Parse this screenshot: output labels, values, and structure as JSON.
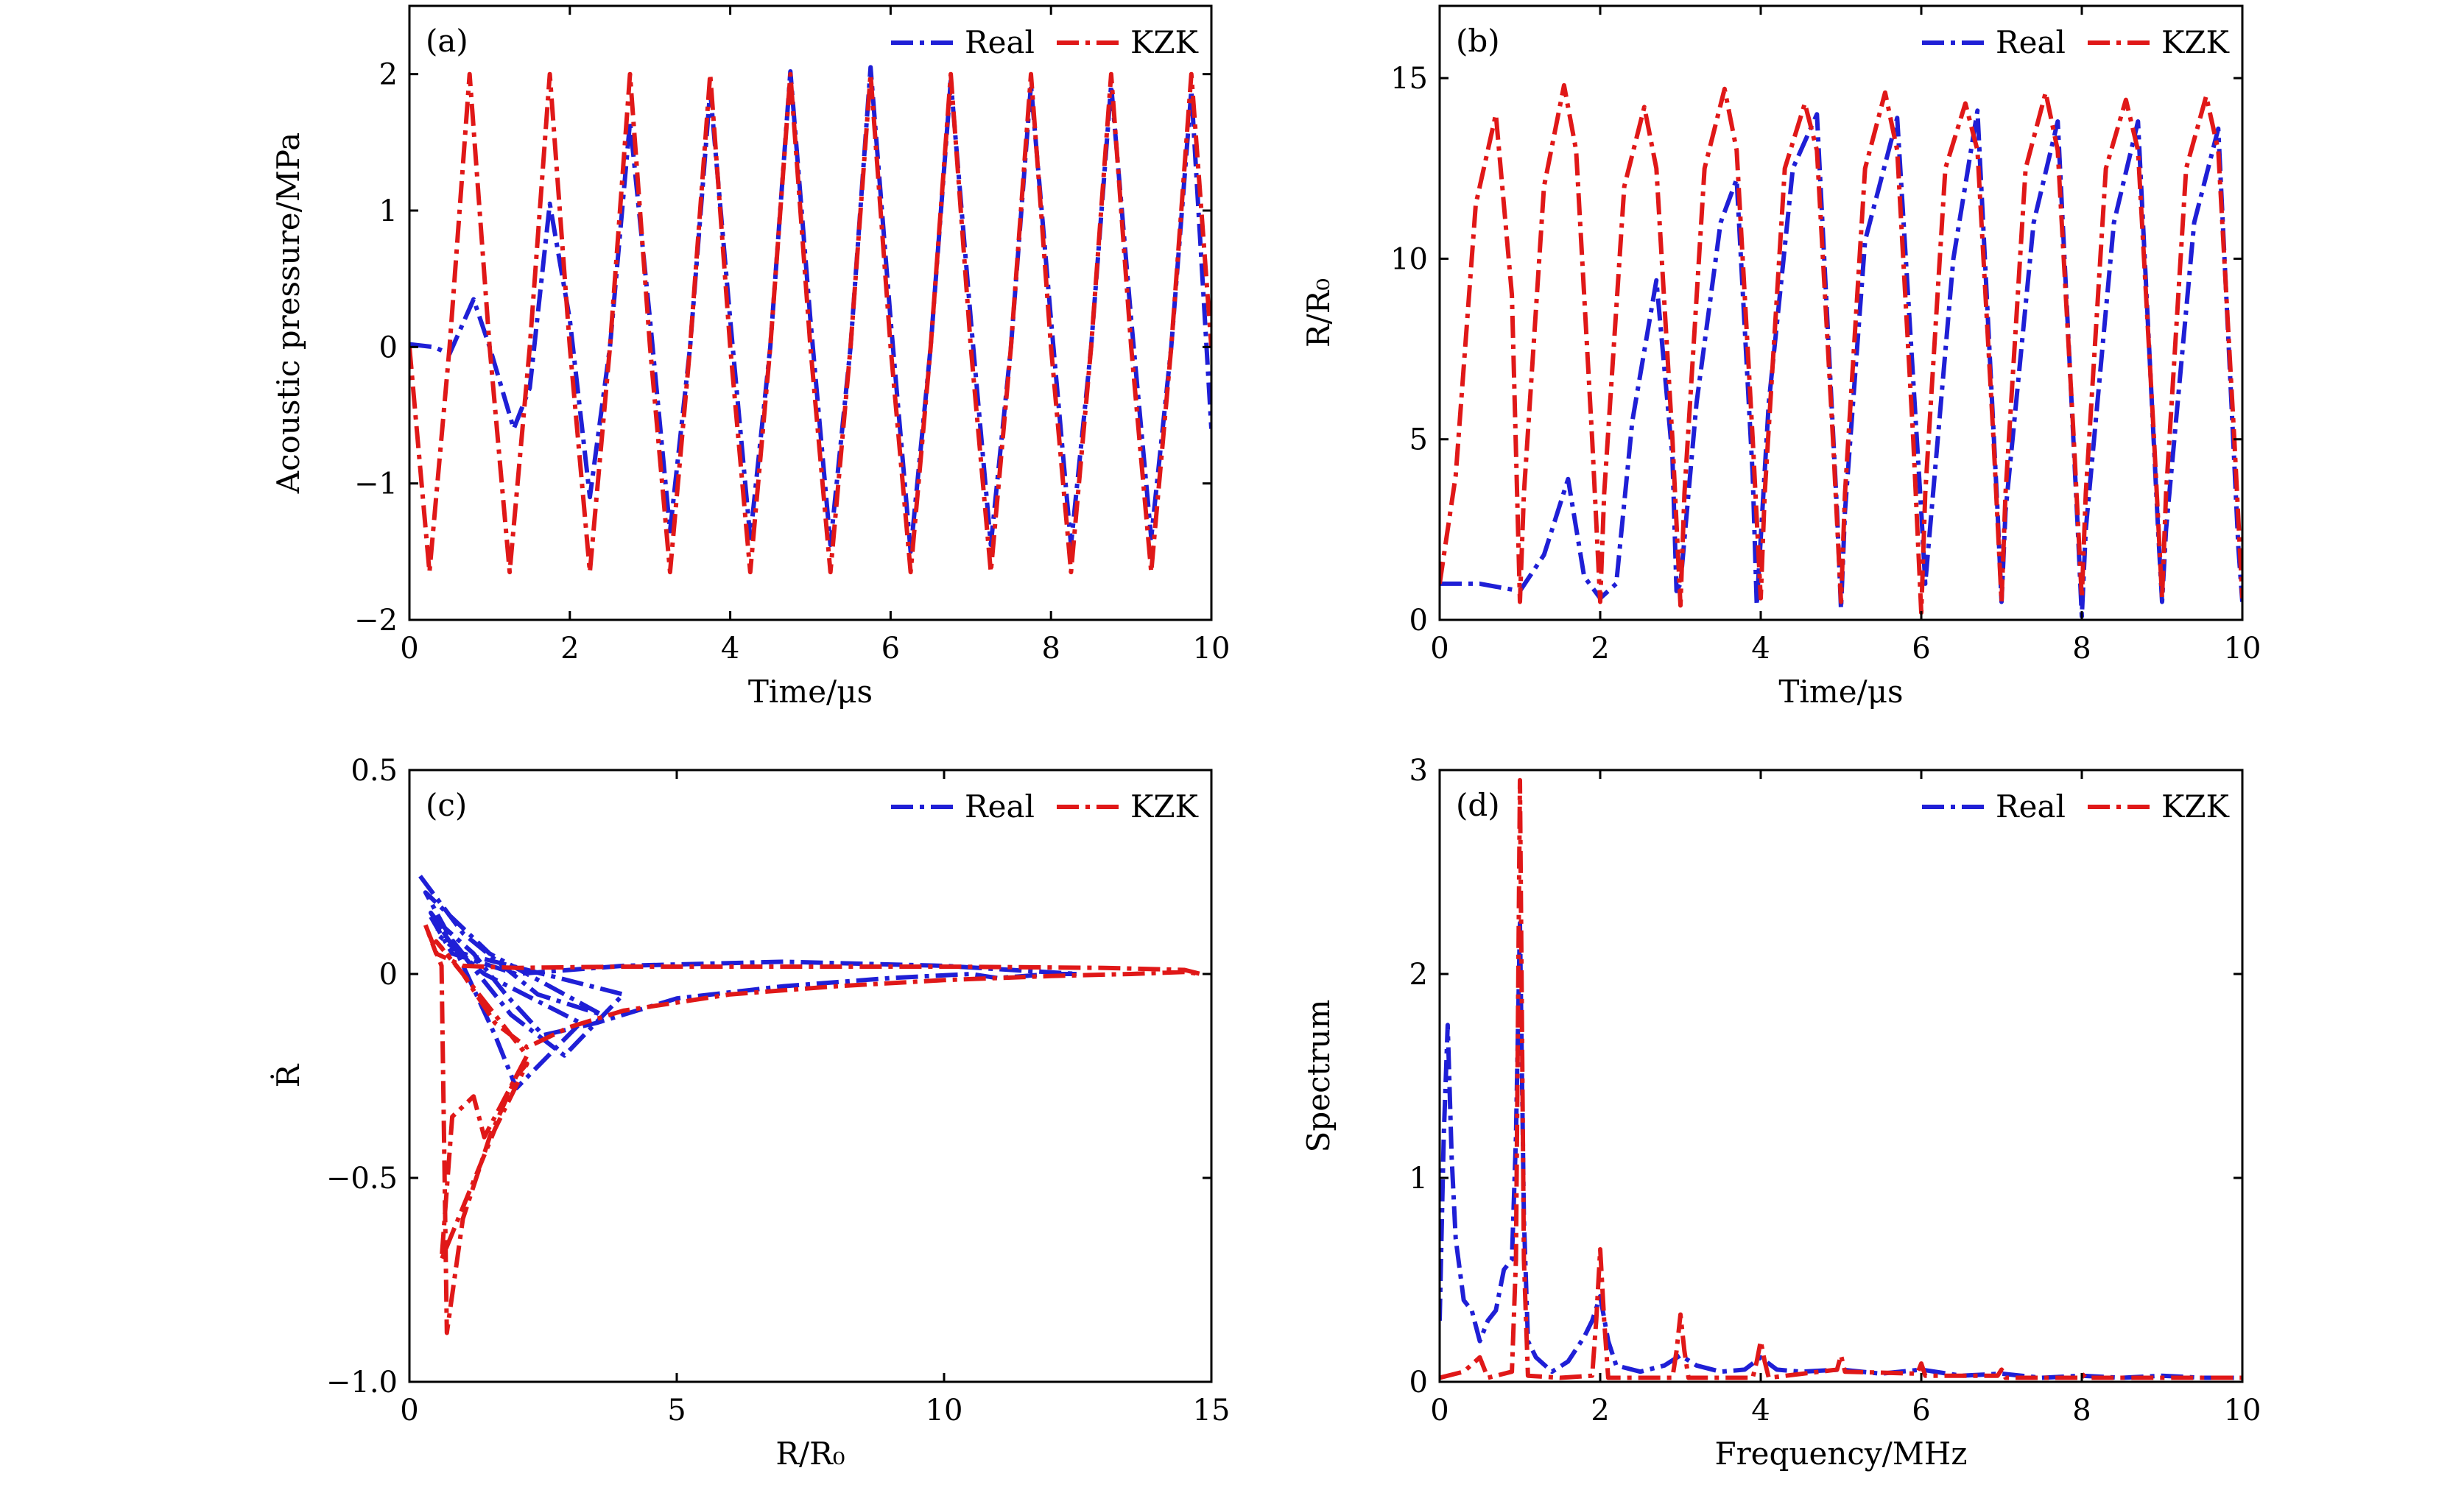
{
  "colors": {
    "real": "#1f1fd6",
    "kzk": "#e01818"
  },
  "chart_data": [
    {
      "id": "a",
      "type": "line",
      "panel_tag": "(a)",
      "xlabel": "Time/μs",
      "ylabel": "Acoustic pressure/MPa",
      "xlim": [
        0,
        10
      ],
      "ylim": [
        -2,
        2.5
      ],
      "xticks": [
        0,
        2,
        4,
        6,
        8,
        10
      ],
      "xtick_labels": [
        "0",
        "2",
        "4",
        "6",
        "8",
        "10"
      ],
      "yticks": [
        -2,
        -1,
        0,
        1,
        2
      ],
      "ytick_labels": [
        "−2",
        "−1",
        "0",
        "1",
        "2"
      ],
      "legend": [
        "Real",
        "KZK"
      ],
      "series": [
        {
          "name": "Real",
          "color_key": "real",
          "x": [
            0,
            0.3,
            0.5,
            0.8,
            1.0,
            1.3,
            1.5,
            1.75,
            2.0,
            2.25,
            2.5,
            2.75,
            3.0,
            3.25,
            3.5,
            3.75,
            4.0,
            4.25,
            4.5,
            4.75,
            5.0,
            5.25,
            5.5,
            5.75,
            6.0,
            6.25,
            6.5,
            6.75,
            7.0,
            7.25,
            7.5,
            7.75,
            8.0,
            8.25,
            8.5,
            8.75,
            9.0,
            9.25,
            9.5,
            9.75,
            10.0
          ],
          "y": [
            0.02,
            0.0,
            -0.05,
            0.35,
            0.0,
            -0.6,
            -0.3,
            1.05,
            0.2,
            -1.1,
            0.0,
            1.65,
            0.2,
            -1.35,
            0.0,
            1.88,
            0.2,
            -1.4,
            0.0,
            2.02,
            0.2,
            -1.45,
            0.0,
            2.05,
            0.2,
            -1.5,
            0.0,
            1.95,
            0.2,
            -1.45,
            0.0,
            1.92,
            0.2,
            -1.45,
            0.0,
            1.92,
            0.2,
            -1.4,
            0.0,
            1.88,
            -0.6
          ]
        },
        {
          "name": "KZK",
          "color_key": "kzk",
          "x": [
            0,
            0.25,
            0.5,
            0.75,
            1.0,
            1.25,
            1.5,
            1.75,
            2.0,
            2.25,
            2.5,
            2.75,
            3.0,
            3.25,
            3.5,
            3.75,
            4.0,
            4.25,
            4.5,
            4.75,
            5.0,
            5.25,
            5.5,
            5.75,
            6.0,
            6.25,
            6.5,
            6.75,
            7.0,
            7.25,
            7.5,
            7.75,
            8.0,
            8.25,
            8.5,
            8.75,
            9.0,
            9.25,
            9.5,
            9.75,
            10.0
          ],
          "y": [
            0.0,
            -1.65,
            0.0,
            2.0,
            0.0,
            -1.65,
            0.0,
            2.0,
            0.0,
            -1.65,
            0.0,
            2.0,
            0.0,
            -1.65,
            0.0,
            2.0,
            0.0,
            -1.65,
            0.0,
            2.0,
            0.0,
            -1.65,
            0.0,
            2.0,
            0.0,
            -1.65,
            0.0,
            2.0,
            0.0,
            -1.65,
            0.0,
            2.0,
            0.0,
            -1.65,
            0.0,
            2.0,
            0.0,
            -1.65,
            0.0,
            2.0,
            0.0
          ]
        }
      ]
    },
    {
      "id": "b",
      "type": "line",
      "panel_tag": "(b)",
      "xlabel": "Time/μs",
      "ylabel": "R/R₀",
      "xlim": [
        0,
        10
      ],
      "ylim": [
        0,
        17
      ],
      "xticks": [
        0,
        2,
        4,
        6,
        8,
        10
      ],
      "xtick_labels": [
        "0",
        "2",
        "4",
        "6",
        "8",
        "10"
      ],
      "yticks": [
        0,
        5,
        10,
        15
      ],
      "ytick_labels": [
        "0",
        "5",
        "10",
        "15"
      ],
      "legend": [
        "Real",
        "KZK"
      ],
      "series": [
        {
          "name": "Real",
          "color_key": "real",
          "x": [
            0,
            0.5,
            1.0,
            1.3,
            1.6,
            1.8,
            2.0,
            2.2,
            2.4,
            2.7,
            2.9,
            2.95,
            3.0,
            3.2,
            3.5,
            3.7,
            3.9,
            3.95,
            4.1,
            4.4,
            4.7,
            4.95,
            5.0,
            5.05,
            5.3,
            5.7,
            6.0,
            6.05,
            6.4,
            6.7,
            6.95,
            7.0,
            7.05,
            7.4,
            7.7,
            7.95,
            8.0,
            8.05,
            8.4,
            8.7,
            8.95,
            9.0,
            9.05,
            9.4,
            9.7,
            9.95,
            10.0
          ],
          "y": [
            1.0,
            1.0,
            0.8,
            1.8,
            3.9,
            1.2,
            0.6,
            1.0,
            5.5,
            9.4,
            4.5,
            0.8,
            1.0,
            6.0,
            11.0,
            12.2,
            4.0,
            0.4,
            6.0,
            12.5,
            14.0,
            3.0,
            0.3,
            3.0,
            10.5,
            13.9,
            3.0,
            1.0,
            10.0,
            14.1,
            3.0,
            0.5,
            3.0,
            11.0,
            13.8,
            2.5,
            0.1,
            2.5,
            11.0,
            13.8,
            2.5,
            0.5,
            2.5,
            11.0,
            13.6,
            2.0,
            0.5
          ]
        },
        {
          "name": "KZK",
          "color_key": "kzk",
          "x": [
            0,
            0.2,
            0.45,
            0.7,
            0.9,
            1.0,
            1.05,
            1.3,
            1.55,
            1.7,
            1.9,
            2.0,
            2.05,
            2.3,
            2.55,
            2.7,
            2.9,
            3.0,
            3.05,
            3.3,
            3.55,
            3.7,
            3.9,
            4.0,
            4.05,
            4.3,
            4.55,
            4.7,
            4.9,
            5.0,
            5.05,
            5.3,
            5.55,
            5.7,
            5.9,
            6.0,
            6.05,
            6.3,
            6.55,
            6.7,
            6.9,
            7.0,
            7.05,
            7.3,
            7.55,
            7.7,
            7.9,
            8.0,
            8.05,
            8.3,
            8.55,
            8.7,
            8.9,
            9.0,
            9.05,
            9.3,
            9.55,
            9.7,
            9.9,
            10.0
          ],
          "y": [
            1.0,
            4.0,
            11.5,
            14.0,
            9.0,
            0.5,
            3.5,
            12.0,
            14.8,
            13.0,
            5.0,
            0.5,
            3.5,
            12.0,
            14.2,
            12.5,
            5.0,
            0.4,
            3.5,
            12.5,
            14.7,
            13.0,
            5.0,
            0.6,
            3.5,
            12.5,
            14.3,
            13.0,
            5.0,
            0.5,
            3.5,
            12.5,
            14.6,
            13.0,
            5.0,
            0.2,
            3.5,
            12.5,
            14.3,
            13.0,
            5.0,
            0.5,
            3.5,
            12.5,
            14.6,
            13.0,
            5.0,
            0.6,
            3.5,
            12.5,
            14.4,
            13.0,
            5.0,
            0.6,
            3.5,
            12.5,
            14.5,
            13.0,
            5.0,
            0.6
          ]
        }
      ]
    },
    {
      "id": "c",
      "type": "line",
      "panel_tag": "(c)",
      "xlabel": "R/R₀",
      "ylabel": "Ṙ",
      "xlim": [
        0,
        15
      ],
      "ylim": [
        -1.0,
        0.5
      ],
      "xticks": [
        0,
        5,
        10,
        15
      ],
      "xtick_labels": [
        "0",
        "5",
        "10",
        "15"
      ],
      "yticks": [
        -1.0,
        -0.5,
        0,
        0.5
      ],
      "ytick_labels": [
        "−1.0",
        "−0.5",
        "0",
        "0.5"
      ],
      "legend": [
        "Real",
        "KZK"
      ],
      "series": [
        {
          "name": "Real",
          "color_key": "real",
          "x": [
            0.2,
            1.0,
            2.4,
            3.6,
            1.5,
            0.3,
            0.8,
            1.9,
            2.9,
            4.0,
            1.0,
            0.4,
            0.9,
            1.6,
            2.0,
            2.6,
            3.2,
            1.4,
            0.5,
            0.6,
            1.2,
            1.8,
            2.5,
            3.5,
            5.0,
            7.0,
            9.0,
            10.5,
            11.0,
            12.0,
            12.5,
            10.0,
            7.0,
            4.0,
            2.0,
            0.8,
            0.4
          ],
          "y": [
            0.24,
            0.1,
            -0.05,
            -0.1,
            0.05,
            0.2,
            0.08,
            -0.1,
            -0.2,
            -0.05,
            0.05,
            0.15,
            0.05,
            -0.15,
            -0.28,
            -0.2,
            -0.12,
            0.0,
            0.1,
            0.12,
            0.05,
            -0.05,
            -0.15,
            -0.12,
            -0.06,
            -0.03,
            -0.01,
            0.0,
            -0.01,
            0.0,
            0.0,
            0.02,
            0.03,
            0.02,
            0.0,
            0.05,
            0.14
          ]
        },
        {
          "name": "KZK",
          "color_key": "kzk",
          "x": [
            0.3,
            0.6,
            0.7,
            1.0,
            1.5,
            2.0,
            2.2,
            1.6,
            0.6,
            0.8,
            1.2,
            1.4,
            1.8,
            2.2,
            0.7,
            0.5,
            1.0,
            1.6,
            2.2,
            3.0,
            4.0,
            6.0,
            8.0,
            10.0,
            12.0,
            13.5,
            14.5,
            14.8,
            14.5,
            13.0,
            10.0,
            7.0,
            4.0,
            2.0,
            1.0,
            0.5,
            0.3
          ],
          "y": [
            0.12,
            0.02,
            -0.88,
            -0.6,
            -0.4,
            -0.25,
            -0.22,
            -0.38,
            -0.7,
            -0.35,
            -0.3,
            -0.4,
            -0.3,
            -0.2,
            0.05,
            0.08,
            0.0,
            -0.12,
            -0.18,
            -0.13,
            -0.09,
            -0.05,
            -0.03,
            -0.015,
            -0.005,
            0.0,
            0.005,
            0.0,
            0.01,
            0.015,
            0.018,
            0.018,
            0.018,
            0.015,
            0.02,
            0.05,
            0.12
          ]
        }
      ]
    },
    {
      "id": "d",
      "type": "line",
      "panel_tag": "(d)",
      "xlabel": "Frequency/MHz",
      "ylabel": "Spectrum",
      "xlim": [
        0,
        10
      ],
      "ylim": [
        0,
        3
      ],
      "xticks": [
        0,
        2,
        4,
        6,
        8,
        10
      ],
      "xtick_labels": [
        "0",
        "2",
        "4",
        "6",
        "8",
        "10"
      ],
      "yticks": [
        0,
        1,
        2,
        3
      ],
      "ytick_labels": [
        "0",
        "1",
        "2",
        "3"
      ],
      "legend": [
        "Real",
        "KZK"
      ],
      "series": [
        {
          "name": "Real",
          "color_key": "real",
          "x": [
            0,
            0.05,
            0.1,
            0.15,
            0.2,
            0.3,
            0.4,
            0.5,
            0.6,
            0.7,
            0.8,
            0.9,
            0.95,
            1.0,
            1.05,
            1.1,
            1.2,
            1.4,
            1.6,
            1.8,
            1.9,
            2.0,
            2.1,
            2.2,
            2.5,
            2.8,
            3.0,
            3.2,
            3.5,
            3.8,
            4.0,
            4.2,
            4.5,
            5.0,
            5.5,
            6.0,
            6.5,
            7.0,
            7.5,
            8.0,
            8.5,
            9.0,
            9.5,
            10.0
          ],
          "y": [
            0.3,
            1.2,
            1.75,
            1.1,
            0.7,
            0.4,
            0.35,
            0.2,
            0.3,
            0.35,
            0.55,
            0.6,
            1.2,
            2.25,
            0.8,
            0.2,
            0.12,
            0.05,
            0.1,
            0.22,
            0.3,
            0.42,
            0.2,
            0.08,
            0.05,
            0.08,
            0.13,
            0.08,
            0.05,
            0.06,
            0.12,
            0.06,
            0.05,
            0.06,
            0.04,
            0.06,
            0.03,
            0.04,
            0.02,
            0.03,
            0.02,
            0.03,
            0.02,
            0.02
          ]
        },
        {
          "name": "KZK",
          "color_key": "kzk",
          "x": [
            0,
            0.3,
            0.5,
            0.6,
            0.9,
            0.95,
            1.0,
            1.05,
            1.1,
            1.5,
            1.9,
            1.95,
            2.0,
            2.05,
            2.1,
            2.9,
            2.95,
            3.0,
            3.05,
            3.1,
            3.9,
            3.95,
            4.0,
            4.05,
            4.1,
            4.95,
            5.0,
            5.05,
            5.95,
            6.0,
            6.05,
            6.95,
            7.0,
            7.05,
            7.95,
            8.0,
            8.05,
            9.0,
            10.0
          ],
          "y": [
            0.02,
            0.05,
            0.12,
            0.02,
            0.05,
            0.6,
            2.95,
            0.6,
            0.03,
            0.02,
            0.03,
            0.3,
            0.65,
            0.3,
            0.02,
            0.02,
            0.15,
            0.33,
            0.15,
            0.02,
            0.02,
            0.1,
            0.2,
            0.1,
            0.02,
            0.06,
            0.13,
            0.05,
            0.04,
            0.09,
            0.03,
            0.03,
            0.06,
            0.02,
            0.02,
            0.04,
            0.02,
            0.02,
            0.02
          ]
        }
      ]
    }
  ]
}
